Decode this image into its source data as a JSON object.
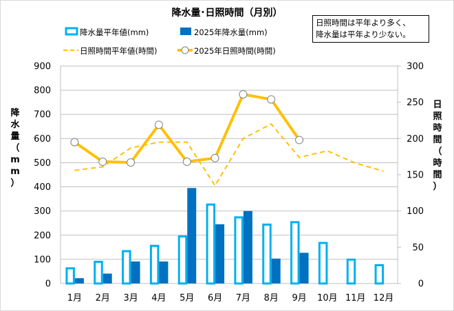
{
  "chart_data": {
    "type": "bar+line",
    "title": "降水量･日照時間（月別）",
    "note": [
      "日照時間は平年より多く、",
      "降水量は平年より少ない。"
    ],
    "categories": [
      "1月",
      "2月",
      "3月",
      "4月",
      "5月",
      "6月",
      "7月",
      "8月",
      "9月",
      "10月",
      "11月",
      "12月"
    ],
    "left_axis": {
      "label": "降水量（mm）",
      "range": [
        0,
        900
      ],
      "ticks": [
        "0",
        "100",
        "200",
        "300",
        "400",
        "500",
        "600",
        "700",
        "800",
        "900"
      ]
    },
    "right_axis": {
      "label": "日照時間（時間）",
      "range": [
        0,
        300
      ],
      "ticks": [
        "0",
        "50",
        "100",
        "150",
        "200",
        "250",
        "300"
      ]
    },
    "grid": true,
    "legend_position": "top",
    "series": [
      {
        "name": "降水量平年値(mm)",
        "type": "bar-outline",
        "axis": "left",
        "color": "#00b0f0",
        "values": [
          67,
          94,
          138,
          160,
          199,
          331,
          278,
          248,
          258,
          172,
          103,
          80
        ]
      },
      {
        "name": "2025年降水量(mm)",
        "type": "bar",
        "axis": "left",
        "color": "#0070c0",
        "values": [
          22,
          41,
          91,
          91,
          395,
          245,
          300,
          103,
          127,
          null,
          null,
          null
        ]
      },
      {
        "name": "日照時間平年値(時間)",
        "type": "line-dashed",
        "axis": "right",
        "color": "#ffc000",
        "values": [
          156,
          161,
          187,
          195,
          195,
          135,
          200,
          220,
          174,
          183,
          166,
          155
        ]
      },
      {
        "name": "2025年日照時間(時間)",
        "type": "line-marker",
        "axis": "right",
        "color": "#ffc000",
        "values": [
          195,
          168,
          167,
          219,
          168,
          173,
          261,
          254,
          198,
          null,
          null,
          null
        ]
      }
    ]
  }
}
